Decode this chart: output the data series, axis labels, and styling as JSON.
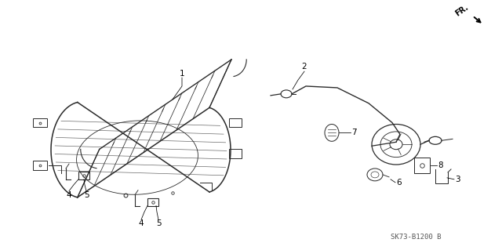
{
  "bg_color": "#ffffff",
  "line_color": "#2a2a2a",
  "diagram_code": "SK73-B1200 B",
  "fig_width": 6.4,
  "fig_height": 3.19,
  "dpi": 100
}
